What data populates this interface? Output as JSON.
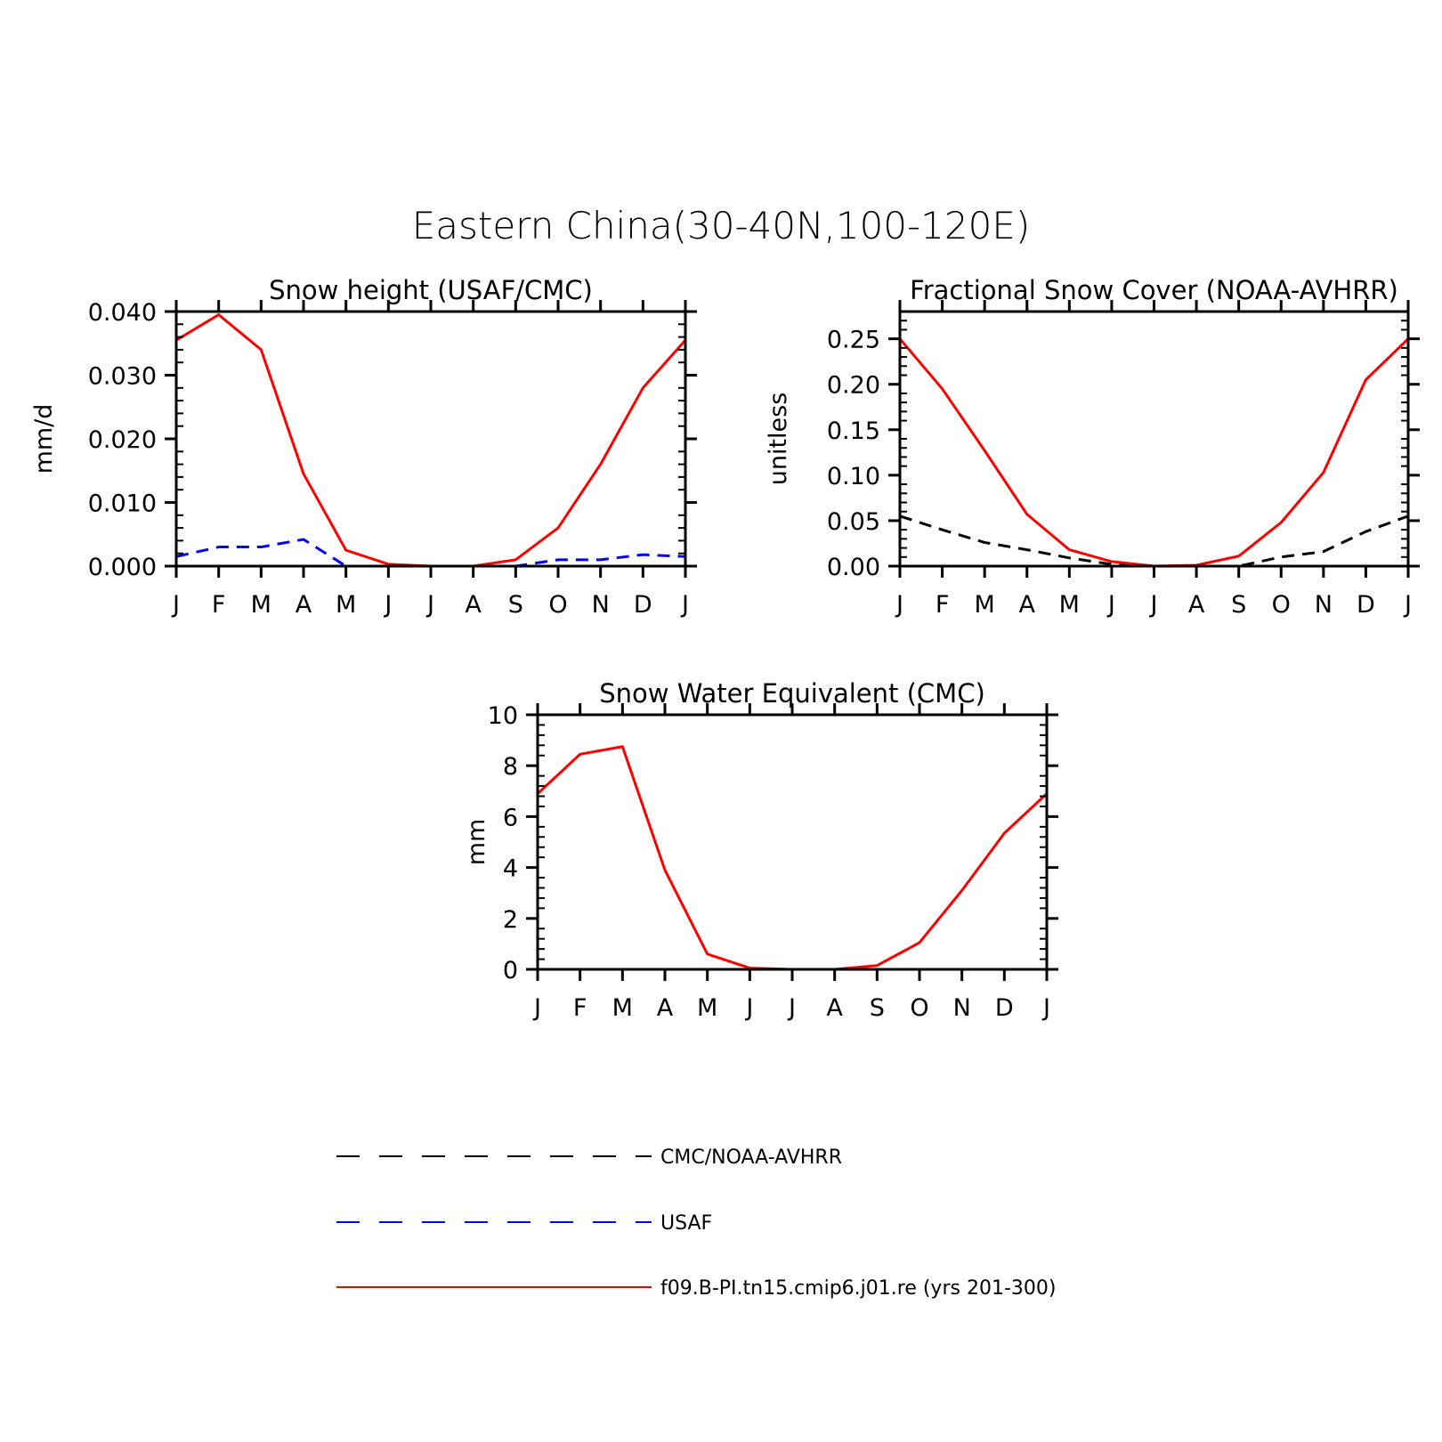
{
  "title": "Eastern China(30-40N,100-120E)",
  "legend": [
    {
      "label": "CMC/NOAA-AVHRR",
      "color": "#000000",
      "dash": "dashed"
    },
    {
      "label": "USAF",
      "color": "#0000ff",
      "dash": "dashed"
    },
    {
      "label": "f09.B-PI.tn15.cmip6.j01.re (yrs 201-300)",
      "color": "#ff0000",
      "dash": "solid"
    }
  ],
  "chart_data": [
    {
      "type": "line",
      "title": "Snow height (USAF/CMC)",
      "ylabel": "mm/d",
      "xlabel": "",
      "categories": [
        "J",
        "F",
        "M",
        "A",
        "M",
        "J",
        "J",
        "A",
        "S",
        "O",
        "N",
        "D",
        "J"
      ],
      "ylim": [
        0,
        0.04
      ],
      "yticks": [
        0,
        0.01,
        0.02,
        0.03,
        0.04
      ],
      "ytick_labels": [
        "0.000",
        "0.010",
        "0.020",
        "0.030",
        "0.040"
      ],
      "series": [
        {
          "name": "CMC/NOAA-AVHRR",
          "color": "#000000",
          "dash": "dashed",
          "values": [
            0,
            0,
            0,
            0,
            0,
            0,
            0,
            0,
            0,
            0,
            0,
            0,
            0
          ]
        },
        {
          "name": "USAF",
          "color": "#0000ff",
          "dash": "dashed",
          "values": [
            0.0015,
            0.003,
            0.003,
            0.0042,
            0,
            0,
            0,
            0,
            0,
            0.001,
            0.001,
            0.0018,
            0.0015
          ]
        },
        {
          "name": "f09.B-PI.tn15.cmip6.j01.re (yrs 201-300)",
          "color": "#ff0000",
          "dash": "solid",
          "values": [
            0.0355,
            0.0395,
            0.034,
            0.0145,
            0.0025,
            0.0003,
            0,
            0,
            0.001,
            0.006,
            0.016,
            0.028,
            0.0355
          ]
        }
      ]
    },
    {
      "type": "line",
      "title": "Fractional Snow Cover (NOAA-AVHRR)",
      "ylabel": "unitless",
      "xlabel": "",
      "categories": [
        "J",
        "F",
        "M",
        "A",
        "M",
        "J",
        "J",
        "A",
        "S",
        "O",
        "N",
        "D",
        "J"
      ],
      "ylim": [
        0,
        0.28
      ],
      "yticks": [
        0,
        0.05,
        0.1,
        0.15,
        0.2,
        0.25
      ],
      "ytick_labels": [
        "0.00",
        "0.05",
        "0.10",
        "0.15",
        "0.20",
        "0.25"
      ],
      "series": [
        {
          "name": "CMC/NOAA-AVHRR",
          "color": "#000000",
          "dash": "dashed",
          "values": [
            0.055,
            0.04,
            0.026,
            0.018,
            0.009,
            0.002,
            0,
            0,
            0,
            0.01,
            0.016,
            0.038,
            0.055
          ]
        },
        {
          "name": "f09.B-PI.tn15.cmip6.j01.re (yrs 201-300)",
          "color": "#ff0000",
          "dash": "solid",
          "values": [
            0.25,
            0.195,
            0.127,
            0.057,
            0.018,
            0.005,
            0,
            0.001,
            0.011,
            0.048,
            0.103,
            0.205,
            0.25
          ]
        }
      ]
    },
    {
      "type": "line",
      "title": "Snow Water Equivalent (CMC)",
      "ylabel": "mm",
      "xlabel": "",
      "categories": [
        "J",
        "F",
        "M",
        "A",
        "M",
        "J",
        "J",
        "A",
        "S",
        "O",
        "N",
        "D",
        "J"
      ],
      "ylim": [
        0,
        10
      ],
      "yticks": [
        0,
        2,
        4,
        6,
        8,
        10
      ],
      "ytick_labels": [
        "0",
        "2",
        "4",
        "6",
        "8",
        "10"
      ],
      "series": [
        {
          "name": "CMC/NOAA-AVHRR",
          "color": "#000000",
          "dash": "dashed",
          "values": [
            0,
            0,
            0,
            0,
            0,
            0,
            0,
            0,
            0,
            0,
            0,
            0,
            0
          ]
        },
        {
          "name": "f09.B-PI.tn15.cmip6.j01.re (yrs 201-300)",
          "color": "#ff0000",
          "dash": "solid",
          "values": [
            6.9,
            8.45,
            8.75,
            3.9,
            0.6,
            0.05,
            0,
            0,
            0.15,
            1.05,
            3.1,
            5.35,
            6.9
          ]
        }
      ]
    }
  ]
}
